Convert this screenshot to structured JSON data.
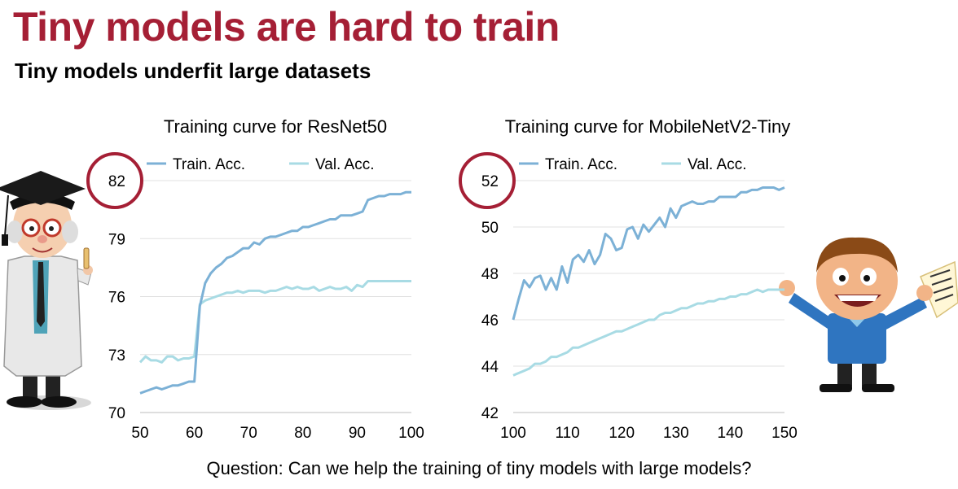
{
  "title": "Tiny models are hard to train",
  "subtitle": "Tiny models underfit large datasets",
  "question": "Question: Can we help the training of tiny models with large models?",
  "colors": {
    "title": "#a51f35",
    "train": "#7cb1d6",
    "val": "#a8dbe4",
    "circle": "#a51f35",
    "grid": "#e0e0e0"
  },
  "chart_data": [
    {
      "type": "line",
      "title": "Training curve for ResNet50",
      "xlabel": "",
      "ylabel": "",
      "xlim": [
        50,
        100
      ],
      "ylim": [
        70,
        82
      ],
      "xticks": [
        "50",
        "60",
        "70",
        "80",
        "90",
        "100"
      ],
      "yticks": [
        "70",
        "73",
        "76",
        "79",
        "82"
      ],
      "highlighted_tick": "82",
      "legend": [
        "Train. Acc.",
        "Val. Acc."
      ],
      "series": [
        {
          "name": "Train. Acc.",
          "x": [
            50,
            51,
            52,
            53,
            54,
            55,
            56,
            57,
            58,
            59,
            60,
            61,
            62,
            63,
            64,
            65,
            66,
            67,
            68,
            69,
            70,
            71,
            72,
            73,
            74,
            75,
            76,
            77,
            78,
            79,
            80,
            81,
            82,
            83,
            84,
            85,
            86,
            87,
            88,
            89,
            90,
            91,
            92,
            93,
            94,
            95,
            96,
            97,
            98,
            99,
            100
          ],
          "y": [
            71.0,
            71.1,
            71.2,
            71.3,
            71.2,
            71.3,
            71.4,
            71.4,
            71.5,
            71.6,
            71.6,
            75.5,
            76.7,
            77.2,
            77.5,
            77.7,
            78.0,
            78.1,
            78.3,
            78.5,
            78.5,
            78.8,
            78.7,
            79.0,
            79.1,
            79.1,
            79.2,
            79.3,
            79.4,
            79.4,
            79.6,
            79.6,
            79.7,
            79.8,
            79.9,
            80.0,
            80.0,
            80.2,
            80.2,
            80.2,
            80.3,
            80.4,
            81.0,
            81.1,
            81.2,
            81.2,
            81.3,
            81.3,
            81.3,
            81.4,
            81.4
          ]
        },
        {
          "name": "Val. Acc.",
          "x": [
            50,
            51,
            52,
            53,
            54,
            55,
            56,
            57,
            58,
            59,
            60,
            61,
            62,
            63,
            64,
            65,
            66,
            67,
            68,
            69,
            70,
            71,
            72,
            73,
            74,
            75,
            76,
            77,
            78,
            79,
            80,
            81,
            82,
            83,
            84,
            85,
            86,
            87,
            88,
            89,
            90,
            91,
            92,
            93,
            94,
            95,
            96,
            97,
            98,
            99,
            100
          ],
          "y": [
            72.6,
            72.9,
            72.7,
            72.7,
            72.6,
            72.9,
            72.9,
            72.7,
            72.8,
            72.8,
            72.9,
            75.6,
            75.8,
            75.9,
            76.0,
            76.1,
            76.2,
            76.2,
            76.3,
            76.2,
            76.3,
            76.3,
            76.3,
            76.2,
            76.3,
            76.3,
            76.4,
            76.5,
            76.4,
            76.5,
            76.4,
            76.4,
            76.5,
            76.3,
            76.4,
            76.5,
            76.4,
            76.4,
            76.5,
            76.3,
            76.6,
            76.5,
            76.8,
            76.8,
            76.8,
            76.8,
            76.8,
            76.8,
            76.8,
            76.8,
            76.8
          ]
        }
      ]
    },
    {
      "type": "line",
      "title": "Training curve for MobileNetV2-Tiny",
      "xlabel": "",
      "ylabel": "",
      "xlim": [
        100,
        150
      ],
      "ylim": [
        42,
        52
      ],
      "xticks": [
        "100",
        "110",
        "120",
        "130",
        "140",
        "150"
      ],
      "yticks": [
        "42",
        "44",
        "46",
        "48",
        "50",
        "52"
      ],
      "highlighted_tick": "52",
      "legend": [
        "Train. Acc.",
        "Val. Acc."
      ],
      "series": [
        {
          "name": "Train. Acc.",
          "x": [
            100,
            101,
            102,
            103,
            104,
            105,
            106,
            107,
            108,
            109,
            110,
            111,
            112,
            113,
            114,
            115,
            116,
            117,
            118,
            119,
            120,
            121,
            122,
            123,
            124,
            125,
            126,
            127,
            128,
            129,
            130,
            131,
            132,
            133,
            134,
            135,
            136,
            137,
            138,
            139,
            140,
            141,
            142,
            143,
            144,
            145,
            146,
            147,
            148,
            149,
            150
          ],
          "y": [
            46.0,
            46.9,
            47.7,
            47.4,
            47.8,
            47.9,
            47.3,
            47.8,
            47.3,
            48.3,
            47.6,
            48.6,
            48.8,
            48.5,
            49.0,
            48.4,
            48.8,
            49.7,
            49.5,
            49.0,
            49.1,
            49.9,
            50.0,
            49.5,
            50.1,
            49.8,
            50.1,
            50.4,
            50.0,
            50.8,
            50.4,
            50.9,
            51.0,
            51.1,
            51.0,
            51.0,
            51.1,
            51.1,
            51.3,
            51.3,
            51.3,
            51.3,
            51.5,
            51.5,
            51.6,
            51.6,
            51.7,
            51.7,
            51.7,
            51.6,
            51.7
          ]
        },
        {
          "name": "Val. Acc.",
          "x": [
            100,
            101,
            102,
            103,
            104,
            105,
            106,
            107,
            108,
            109,
            110,
            111,
            112,
            113,
            114,
            115,
            116,
            117,
            118,
            119,
            120,
            121,
            122,
            123,
            124,
            125,
            126,
            127,
            128,
            129,
            130,
            131,
            132,
            133,
            134,
            135,
            136,
            137,
            138,
            139,
            140,
            141,
            142,
            143,
            144,
            145,
            146,
            147,
            148,
            149,
            150
          ],
          "y": [
            43.6,
            43.7,
            43.8,
            43.9,
            44.1,
            44.1,
            44.2,
            44.4,
            44.4,
            44.5,
            44.6,
            44.8,
            44.8,
            44.9,
            45.0,
            45.1,
            45.2,
            45.3,
            45.4,
            45.5,
            45.5,
            45.6,
            45.7,
            45.8,
            45.9,
            46.0,
            46.0,
            46.2,
            46.3,
            46.3,
            46.4,
            46.5,
            46.5,
            46.6,
            46.7,
            46.7,
            46.8,
            46.8,
            46.9,
            46.9,
            47.0,
            47.0,
            47.1,
            47.1,
            47.2,
            47.3,
            47.2,
            47.3,
            47.3,
            47.3,
            47.3
          ]
        }
      ]
    }
  ]
}
